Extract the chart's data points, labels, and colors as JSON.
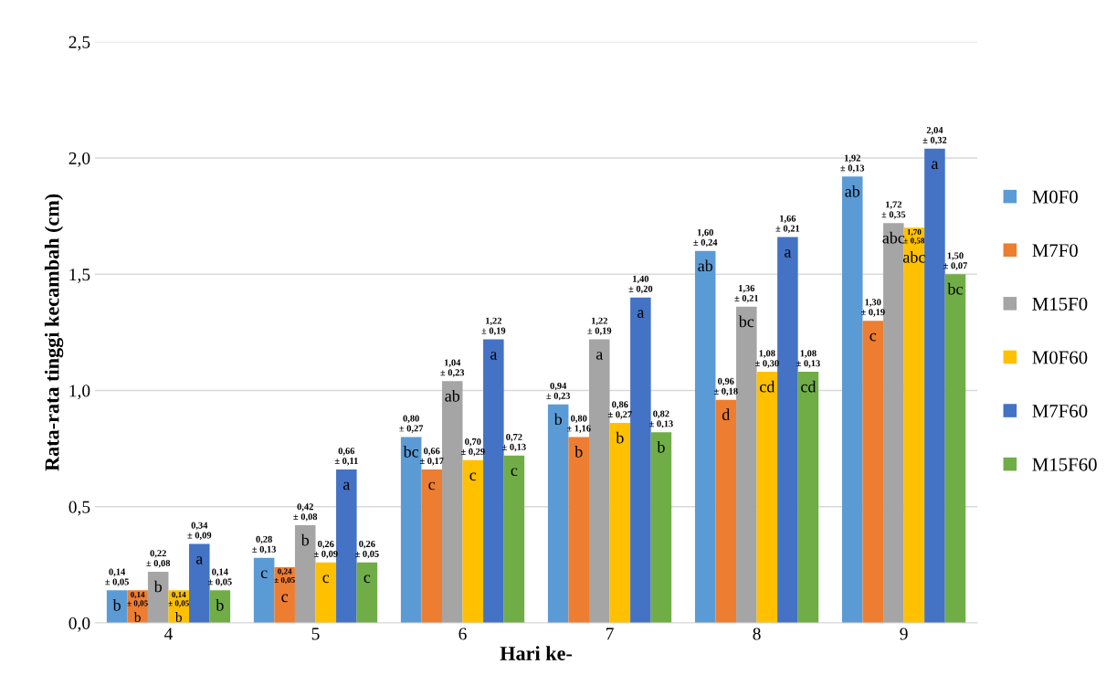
{
  "chart_data": {
    "type": "bar",
    "xlabel": "Hari ke-",
    "ylabel": "Rata-rata tinggi kecambah (cm)",
    "categories": [
      "4",
      "5",
      "6",
      "7",
      "8",
      "9"
    ],
    "series": [
      {
        "name": "M0F0",
        "color": "#5b9bd5",
        "values": [
          0.14,
          0.28,
          0.8,
          0.94,
          1.6,
          1.92
        ],
        "value_labels": [
          "0,14\n± 0,05",
          "0,28\n± 0,13",
          "0,80\n± 0,27",
          "0,94\n± 0,23",
          "1,60\n± 0,24",
          "1,92\n± 0,13"
        ]
      },
      {
        "name": "M7F0",
        "color": "#ed7d31",
        "values": [
          0.14,
          0.24,
          0.66,
          0.8,
          0.96,
          1.3
        ],
        "value_labels": [
          "0,14\n± 0,05",
          "0,24\n± 0,05",
          "0,66\n± 0,17",
          "0,80\n± 1,16",
          "0,96\n± 0,18",
          "1,30\n± 0,19"
        ]
      },
      {
        "name": "M15F0",
        "color": "#a5a5a5",
        "values": [
          0.22,
          0.42,
          1.04,
          1.22,
          1.36,
          1.72
        ],
        "value_labels": [
          "0,22\n± 0,08",
          "0,42\n± 0,08",
          "1,04\n± 0,23",
          "1,22\n± 0,19",
          "1,36\n± 0,21",
          "1,72\n± 0,35"
        ]
      },
      {
        "name": "M0F60",
        "color": "#ffc000",
        "values": [
          0.14,
          0.26,
          0.7,
          0.86,
          1.08,
          1.7
        ],
        "value_labels": [
          "0,14\n± 0,05",
          "0,26\n± 0,09",
          "0,70\n± 0,29",
          "0,86\n± 0,27",
          "1,08\n± 0,30",
          "1,70\n± 0,58"
        ]
      },
      {
        "name": "M7F60",
        "color": "#4472c4",
        "values": [
          0.34,
          0.66,
          1.22,
          1.4,
          1.66,
          2.04
        ],
        "value_labels": [
          "0,34\n± 0,09",
          "0,66\n± 0,11",
          "1,22\n± 0,19",
          "1,40\n± 0,20",
          "1,66\n± 0,21",
          "2,04\n± 0,32"
        ]
      },
      {
        "name": "M15F60",
        "color": "#70ad47",
        "values": [
          0.14,
          0.26,
          0.72,
          0.82,
          1.08,
          1.5
        ],
        "value_labels": [
          "0,14\n± 0,05",
          "0,26\n± 0,05",
          "0,72\n± 0,13",
          "0,82\n± 0,13",
          "1,08\n± 0,13",
          "1,50\n± 0,07"
        ]
      }
    ],
    "annotations": [
      "b",
      "c",
      "bc",
      "b",
      "ab",
      "ab",
      "b",
      "c",
      "c",
      "b",
      "d",
      "c",
      "b",
      "b",
      "ab",
      "a",
      "bc",
      "abc",
      "b",
      "c",
      "c",
      "b",
      "cd",
      "abc",
      "a",
      "a",
      "a",
      "a",
      "a",
      "a",
      "b",
      "c",
      "c",
      "b",
      "cd",
      "bc"
    ],
    "ylim": [
      0,
      2.5
    ],
    "yticks": [
      {
        "value": 0,
        "label": "0,0"
      },
      {
        "value": 0.5,
        "label": "0,5"
      },
      {
        "value": 1.0,
        "label": "1,0"
      },
      {
        "value": 1.5,
        "label": "1,5"
      },
      {
        "value": 2.0,
        "label": "2,0"
      },
      {
        "value": 2.5,
        "label": "2,5"
      }
    ],
    "grid": "y",
    "legend": "right"
  }
}
